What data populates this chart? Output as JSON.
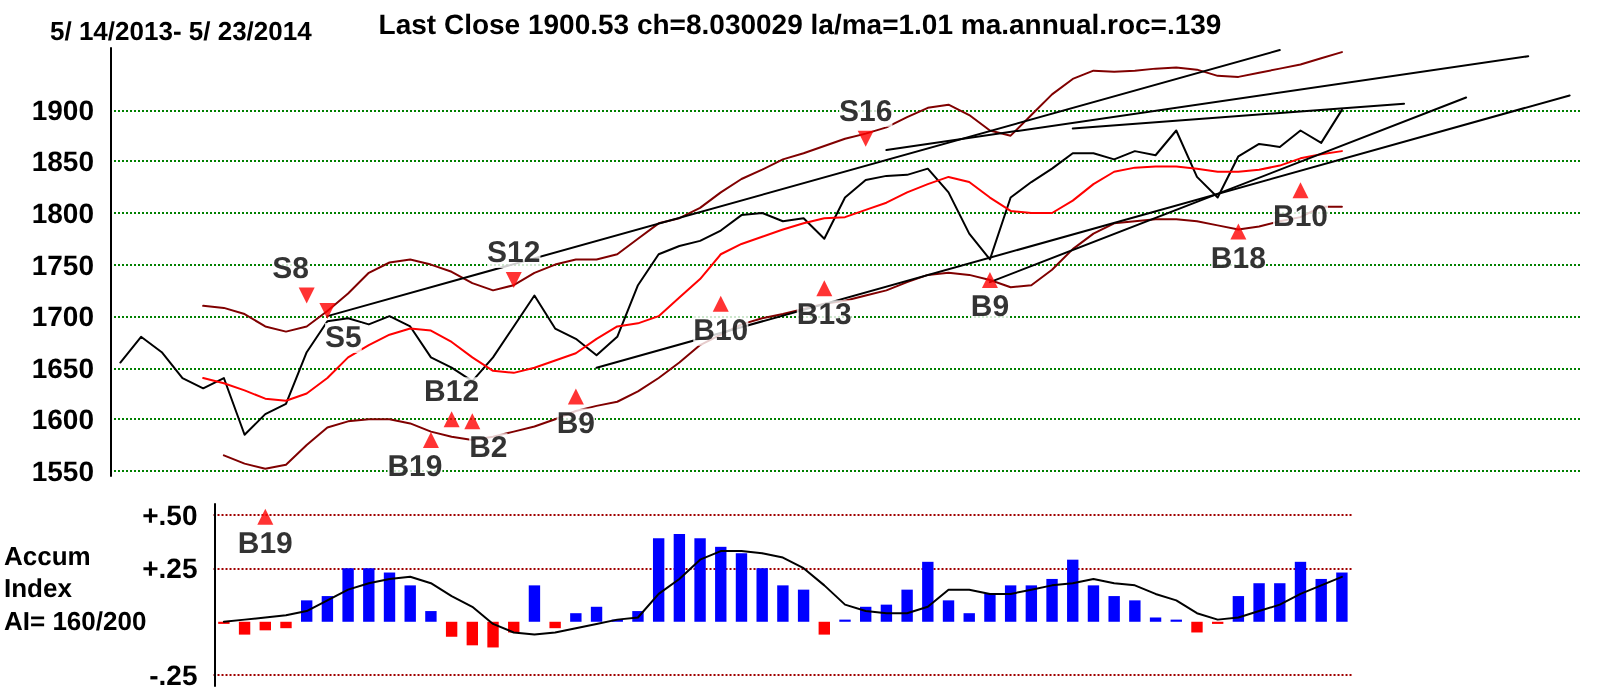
{
  "chart_data": [
    {
      "type": "line",
      "title": "Last Close 1900.53 ch=8.030029 la/ma=1.01 ma.annual.roc=.139",
      "subtitle": "5/ 14/2013- 5/ 23/2014",
      "categories": [
        null,
        null,
        null,
        null,
        null,
        null,
        null,
        null,
        null,
        null,
        null,
        null,
        null,
        null,
        null,
        null,
        null,
        null,
        null,
        null,
        null,
        null,
        null,
        null,
        null,
        null,
        null,
        null,
        null,
        null,
        null,
        null,
        null,
        null,
        null,
        null,
        null,
        null,
        null,
        null,
        null,
        null,
        null,
        null,
        null,
        null,
        null,
        null,
        null,
        null,
        null,
        null,
        null,
        null,
        null,
        null,
        null,
        null,
        null,
        null,
        null,
        null,
        null,
        null,
        null,
        null,
        null,
        null,
        null,
        null,
        null
      ],
      "ylim": [
        1545,
        1960
      ],
      "yticks": [
        1550,
        1600,
        1650,
        1700,
        1750,
        1800,
        1850,
        1900
      ],
      "grid": "y",
      "tick_labels": "y",
      "marker": "none",
      "series": [
        {
          "color": "#000000",
          "values": [
            1655,
            1680,
            1665,
            1640,
            1630,
            1640,
            1585,
            1605,
            1615,
            1665,
            1695,
            1698,
            1692,
            1700,
            1690,
            1660,
            1650,
            1637,
            1660,
            1690,
            1720,
            1688,
            1678,
            1662,
            1680,
            1730,
            1760,
            1768,
            1773,
            1783,
            1798,
            1800,
            1792,
            1795,
            1775,
            1815,
            1832,
            1836,
            1837,
            1843,
            1820,
            1780,
            1755,
            1815,
            1830,
            1843,
            1858,
            1858,
            1852,
            1860,
            1856,
            1880,
            1835,
            1815,
            1855,
            1867,
            1864,
            1880,
            1868,
            1900,
            null,
            null,
            null,
            null,
            null,
            null,
            null,
            null,
            null,
            null,
            null
          ]
        },
        {
          "type": "line",
          "color": "#ff0000",
          "values": [
            null,
            null,
            null,
            null,
            1640,
            1635,
            1628,
            1620,
            1618,
            1625,
            1640,
            1660,
            1672,
            1682,
            1688,
            1686,
            1675,
            1660,
            1647,
            1645,
            1650,
            1657,
            1664,
            1678,
            1690,
            1693,
            1700,
            1718,
            1736,
            1760,
            1770,
            1777,
            1784,
            1790,
            1795,
            1796,
            1803,
            1810,
            1820,
            1828,
            1835,
            1830,
            1815,
            1802,
            1800,
            1800,
            1812,
            1828,
            1840,
            1844,
            1845,
            1845,
            1843,
            1840,
            1840,
            1842,
            1846,
            1853,
            1857,
            1860,
            null,
            null,
            null,
            null,
            null,
            null,
            null,
            null,
            null,
            null,
            null
          ]
        },
        {
          "type": "line",
          "color": "#800000",
          "values": [
            null,
            null,
            null,
            null,
            1710,
            1708,
            1702,
            1690,
            1685,
            1690,
            1705,
            1722,
            1742,
            1752,
            1755,
            1750,
            1743,
            1732,
            1725,
            1730,
            1742,
            1750,
            1755,
            1755,
            1760,
            1775,
            1790,
            1795,
            1805,
            1820,
            1833,
            1842,
            1852,
            1858,
            1865,
            1872,
            1877,
            1883,
            1893,
            1902,
            1905,
            1895,
            1880,
            1875,
            1895,
            1915,
            1930,
            1938,
            1937,
            1938,
            1940,
            1941,
            1939,
            1933,
            1932,
            1936,
            1940,
            1944,
            1950,
            1956,
            null,
            null,
            null,
            null,
            null,
            null,
            null,
            null,
            null,
            null,
            null
          ]
        },
        {
          "type": "line",
          "color": "#800000",
          "values": [
            null,
            null,
            null,
            null,
            null,
            1565,
            1557,
            1552,
            1556,
            1575,
            1592,
            1598,
            1600,
            1600,
            1596,
            1588,
            1583,
            1580,
            1583,
            1588,
            1593,
            1600,
            1608,
            1613,
            1617,
            1627,
            1640,
            1655,
            1672,
            1682,
            1692,
            1698,
            1702,
            1707,
            1712,
            1715,
            1720,
            1725,
            1733,
            1740,
            1742,
            1740,
            1735,
            1728,
            1730,
            1745,
            1765,
            1780,
            1790,
            1792,
            1794,
            1794,
            1792,
            1788,
            1784,
            1787,
            1792,
            1796,
            1806,
            1806,
            null,
            null,
            null,
            null,
            null,
            null,
            null,
            null,
            null,
            null,
            null
          ]
        },
        {
          "type": "line",
          "color": "#000000",
          "values": [
            null,
            null,
            null,
            null,
            null,
            null,
            null,
            null,
            null,
            null,
            1700,
            null,
            null,
            null,
            null,
            null,
            null,
            null,
            null,
            null,
            null,
            null,
            null,
            null,
            null,
            null,
            null,
            null,
            null,
            null,
            null,
            null,
            null,
            null,
            null,
            null,
            null,
            null,
            null,
            null,
            null,
            null,
            null,
            null,
            null,
            null,
            null,
            null,
            null,
            null,
            null,
            null,
            null,
            null,
            null,
            null,
            1958,
            null,
            null,
            null,
            null,
            null,
            null,
            null,
            null,
            null,
            null,
            null,
            null,
            null,
            null
          ]
        },
        {
          "type": "line",
          "color": "#000000",
          "values": [
            null,
            null,
            null,
            null,
            null,
            null,
            null,
            null,
            null,
            null,
            null,
            null,
            null,
            null,
            null,
            null,
            null,
            null,
            null,
            null,
            null,
            null,
            null,
            null,
            null,
            null,
            null,
            null,
            null,
            null,
            null,
            null,
            null,
            null,
            null,
            null,
            null,
            1861,
            null,
            null,
            null,
            null,
            null,
            null,
            null,
            null,
            null,
            null,
            null,
            null,
            null,
            null,
            null,
            null,
            null,
            null,
            null,
            null,
            null,
            null,
            null,
            null,
            null,
            null,
            null,
            null,
            null,
            null,
            1952,
            null,
            null
          ]
        },
        {
          "type": "line",
          "color": "#000000",
          "values": [
            null,
            null,
            null,
            null,
            null,
            null,
            null,
            null,
            null,
            null,
            null,
            null,
            null,
            null,
            null,
            null,
            null,
            null,
            null,
            null,
            null,
            null,
            null,
            null,
            null,
            null,
            null,
            null,
            null,
            null,
            null,
            null,
            null,
            null,
            null,
            null,
            null,
            null,
            null,
            null,
            null,
            null,
            null,
            null,
            null,
            null,
            1882,
            null,
            null,
            null,
            null,
            null,
            null,
            null,
            null,
            null,
            null,
            null,
            null,
            null,
            null,
            null,
            1906,
            null,
            null,
            null,
            null,
            null,
            null,
            null,
            null
          ]
        },
        {
          "type": "line",
          "color": "#000000",
          "values": [
            null,
            null,
            null,
            null,
            null,
            null,
            null,
            null,
            null,
            null,
            null,
            null,
            null,
            null,
            null,
            null,
            null,
            null,
            null,
            null,
            null,
            null,
            null,
            1650,
            null,
            null,
            null,
            null,
            null,
            null,
            null,
            null,
            null,
            null,
            null,
            null,
            null,
            null,
            null,
            null,
            null,
            null,
            null,
            null,
            null,
            null,
            null,
            null,
            null,
            null,
            null,
            null,
            null,
            null,
            null,
            null,
            null,
            null,
            null,
            null,
            null,
            null,
            null,
            null,
            null,
            null,
            null,
            null,
            null,
            null,
            1914
          ]
        },
        {
          "type": "line",
          "color": "#000000",
          "values": [
            null,
            null,
            null,
            null,
            null,
            null,
            null,
            null,
            null,
            null,
            null,
            null,
            null,
            null,
            null,
            null,
            null,
            null,
            null,
            null,
            null,
            null,
            null,
            null,
            null,
            null,
            null,
            null,
            null,
            null,
            null,
            null,
            null,
            null,
            null,
            null,
            null,
            null,
            null,
            null,
            null,
            null,
            1733,
            null,
            null,
            null,
            null,
            null,
            null,
            null,
            null,
            null,
            null,
            null,
            null,
            null,
            null,
            null,
            null,
            null,
            null,
            null,
            null,
            null,
            null,
            1912,
            null,
            null,
            null,
            null,
            null
          ]
        },
        {
          "type": "scatter",
          "color": "#ff0000",
          "marker": "triangle",
          "values": [
            null,
            null,
            null,
            null,
            null,
            null,
            null,
            null,
            null,
            1720,
            1705,
            null,
            null,
            null,
            null,
            1580,
            1600,
            1598,
            null,
            1735,
            null,
            null,
            1622,
            null,
            null,
            null,
            null,
            null,
            null,
            1712,
            null,
            null,
            null,
            null,
            1727,
            null,
            1872,
            null,
            null,
            null,
            null,
            null,
            1735,
            null,
            null,
            null,
            null,
            null,
            null,
            null,
            null,
            null,
            null,
            null,
            1782,
            null,
            null,
            1822,
            null,
            null,
            null,
            null,
            null,
            null,
            null,
            null,
            null,
            null,
            null,
            null,
            null
          ],
          "value_labels": [
            null,
            null,
            null,
            null,
            null,
            null,
            null,
            null,
            null,
            "S8",
            "S5",
            null,
            null,
            null,
            null,
            "B19",
            "B12",
            "B2",
            null,
            "S12",
            null,
            null,
            "B9",
            null,
            null,
            null,
            null,
            null,
            null,
            "B10",
            null,
            null,
            null,
            null,
            "B13",
            null,
            "S16",
            null,
            null,
            null,
            null,
            null,
            "B9",
            null,
            null,
            null,
            null,
            null,
            null,
            null,
            null,
            null,
            null,
            null,
            "B18",
            null,
            null,
            "B10",
            null,
            null,
            null,
            null,
            null,
            null,
            null,
            null,
            null,
            null,
            null,
            null,
            null
          ]
        }
      ]
    },
    {
      "type": "bar",
      "ylabel": "Accum Index",
      "annotations": [
        "AI= 160/200"
      ],
      "categories": [
        null,
        null,
        null,
        null,
        null,
        null,
        null,
        null,
        null,
        null,
        null,
        null,
        null,
        null,
        null,
        null,
        null,
        null,
        null,
        null,
        null,
        null,
        null,
        null,
        null,
        null,
        null,
        null,
        null,
        null,
        null,
        null,
        null,
        null,
        null,
        null,
        null,
        null,
        null,
        null,
        null,
        null,
        null,
        null,
        null,
        null,
        null,
        null,
        null,
        null,
        null,
        null,
        null,
        null,
        null
      ],
      "ylim": [
        -0.3,
        0.55
      ],
      "yticks": [
        {
          "value": 0.5,
          "label": "+.50"
        },
        {
          "value": 0.25,
          "label": "+.25"
        },
        {
          "value": -0.25,
          "label": "-.25"
        }
      ],
      "grid": "y",
      "tick_labels": "y",
      "marker": "none",
      "series": [
        {
          "values": [
            -0.01,
            -0.06,
            -0.04,
            -0.03,
            0.1,
            0.12,
            0.25,
            0.25,
            0.23,
            0.17,
            0.05,
            -0.07,
            -0.11,
            -0.12,
            -0.05,
            0.17,
            -0.03,
            0.04,
            0.07,
            0.01,
            0.05,
            0.39,
            0.41,
            0.39,
            0.35,
            0.32,
            0.25,
            0.17,
            0.15,
            -0.06,
            0.01,
            0.07,
            0.08,
            0.15,
            0.28,
            0.1,
            0.04,
            0.13,
            0.17,
            0.17,
            0.2,
            0.29,
            0.17,
            0.12,
            0.1,
            0.02,
            0.01,
            -0.05,
            -0.01,
            0.12,
            0.18,
            0.18,
            0.28,
            0.2,
            0.23
          ],
          "colors": [
            "#ff0000",
            "#ff0000",
            "#ff0000",
            "#ff0000",
            "#0000ff",
            "#0000ff",
            "#0000ff",
            "#0000ff",
            "#0000ff",
            "#0000ff",
            "#0000ff",
            "#ff0000",
            "#ff0000",
            "#ff0000",
            "#ff0000",
            "#0000ff",
            "#ff0000",
            "#0000ff",
            "#0000ff",
            "#0000ff",
            "#0000ff",
            "#0000ff",
            "#0000ff",
            "#0000ff",
            "#0000ff",
            "#0000ff",
            "#0000ff",
            "#0000ff",
            "#0000ff",
            "#ff0000",
            "#0000ff",
            "#0000ff",
            "#0000ff",
            "#0000ff",
            "#0000ff",
            "#0000ff",
            "#0000ff",
            "#0000ff",
            "#0000ff",
            "#0000ff",
            "#0000ff",
            "#0000ff",
            "#0000ff",
            "#0000ff",
            "#0000ff",
            "#0000ff",
            "#0000ff",
            "#ff0000",
            "#ff0000",
            "#0000ff",
            "#0000ff",
            "#0000ff",
            "#0000ff",
            "#0000ff",
            "#0000ff"
          ]
        },
        {
          "type": "line",
          "color": "#000000",
          "values": [
            0.0,
            0.01,
            0.02,
            0.03,
            0.05,
            0.1,
            0.15,
            0.18,
            0.2,
            0.21,
            0.18,
            0.12,
            0.07,
            -0.01,
            -0.05,
            -0.06,
            -0.05,
            -0.03,
            -0.01,
            0.01,
            0.02,
            0.13,
            0.2,
            0.29,
            0.33,
            0.33,
            0.32,
            0.3,
            0.25,
            0.17,
            0.08,
            0.05,
            0.04,
            0.04,
            0.07,
            0.15,
            0.15,
            0.13,
            0.13,
            0.15,
            0.17,
            0.18,
            0.2,
            0.18,
            0.17,
            0.13,
            0.1,
            0.04,
            0.01,
            0.02,
            0.05,
            0.08,
            0.13,
            0.17,
            0.21
          ]
        },
        {
          "type": "scatter",
          "color": "#ff0000",
          "marker": "triangle",
          "values": [
            null,
            null,
            0.49,
            null,
            null,
            null,
            null,
            null,
            null,
            null,
            null,
            null,
            null,
            null,
            null,
            null,
            null,
            null,
            null,
            null,
            null,
            null,
            null,
            null,
            null,
            null,
            null,
            null,
            null,
            null,
            null,
            null,
            null,
            null,
            null,
            null,
            null,
            null,
            null,
            null,
            null,
            null,
            null,
            null,
            null,
            null,
            null,
            null,
            null,
            null,
            null,
            null,
            null,
            null,
            null
          ],
          "value_labels": [
            null,
            null,
            "B19",
            null,
            null,
            null,
            null,
            null,
            null,
            null,
            null,
            null,
            null,
            null,
            null,
            null,
            null,
            null,
            null,
            null,
            null,
            null,
            null,
            null,
            null,
            null,
            null,
            null,
            null,
            null,
            null,
            null,
            null,
            null,
            null,
            null,
            null,
            null,
            null,
            null,
            null,
            null,
            null,
            null,
            null,
            null,
            null,
            null,
            null,
            null,
            null,
            null,
            null,
            null,
            null
          ]
        }
      ]
    }
  ]
}
